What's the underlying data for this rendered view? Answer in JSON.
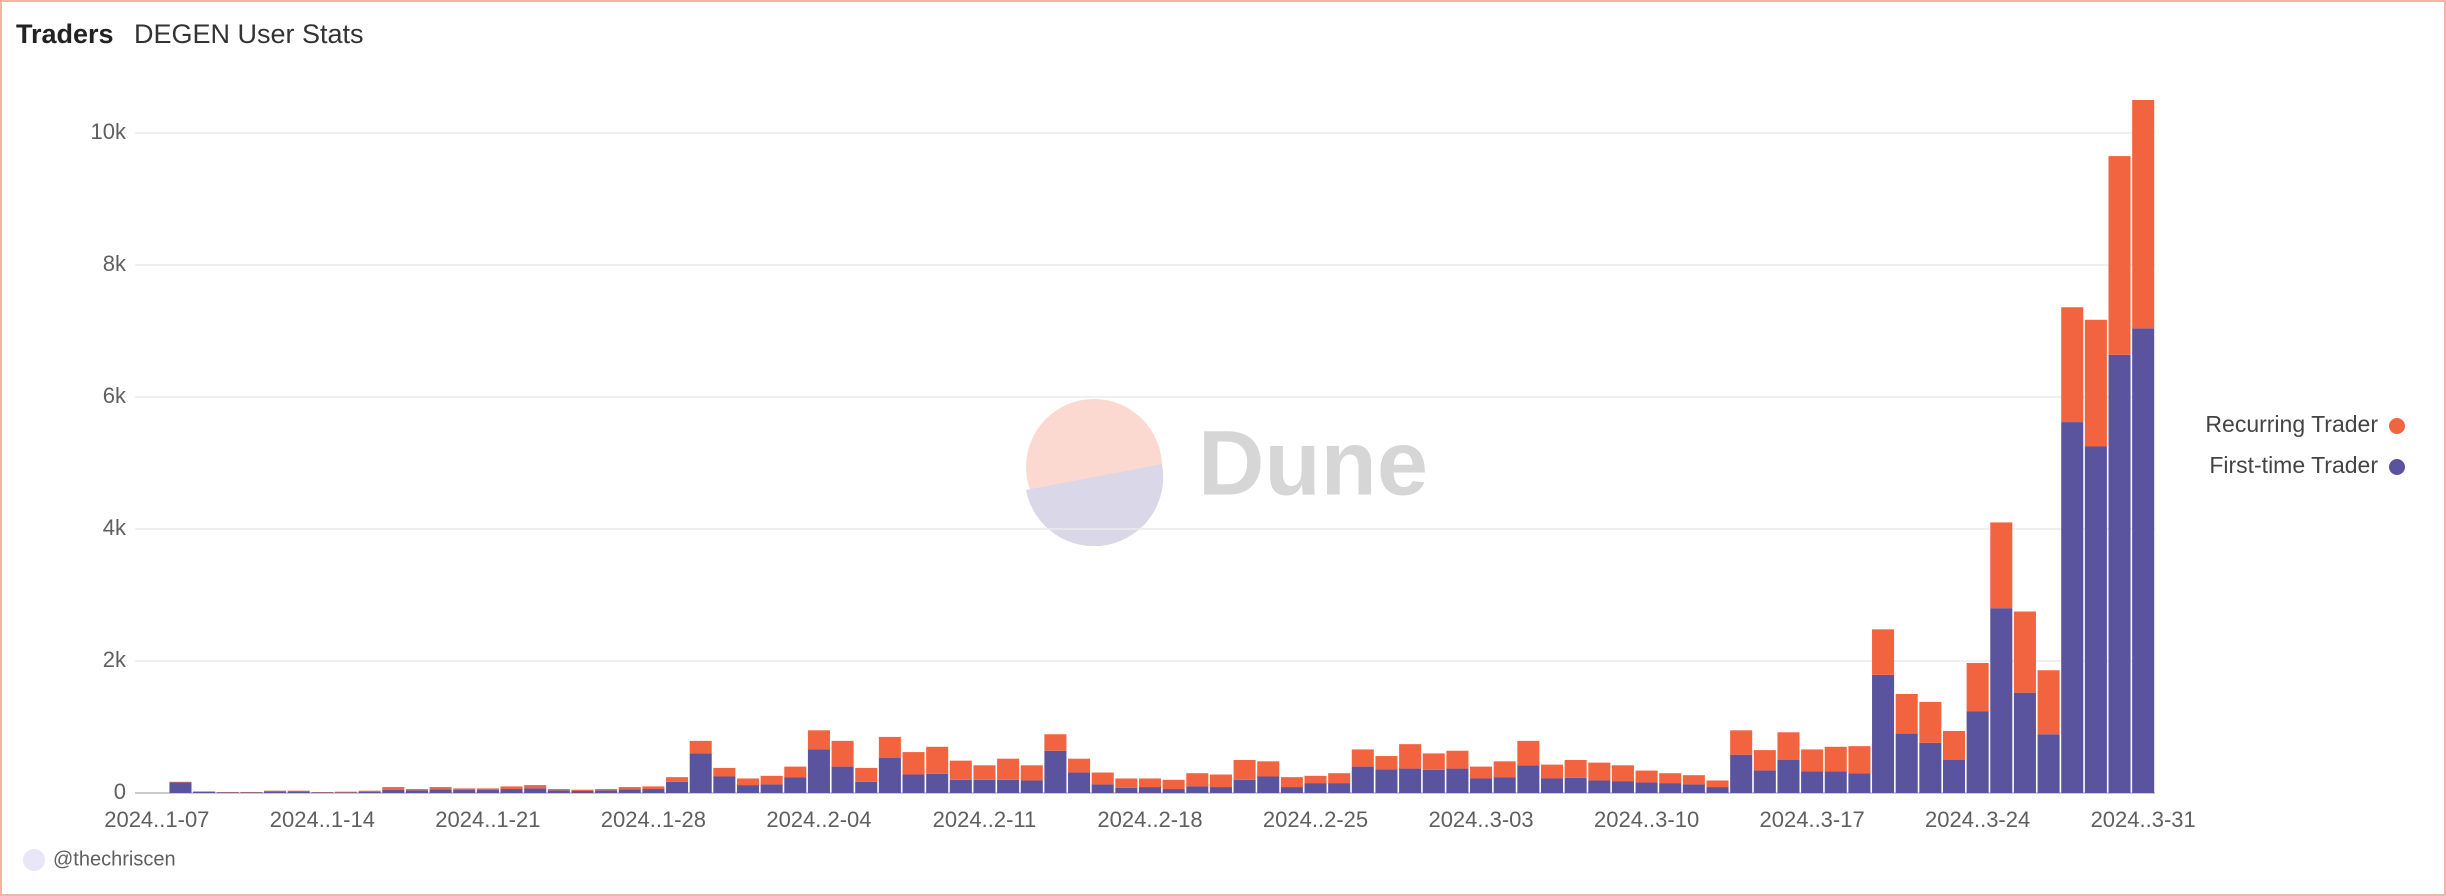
{
  "chart_data": {
    "type": "stacked_bar",
    "title": "Traders",
    "subtitle": "DEGEN User Stats",
    "watermark": "Dune",
    "author": "@thechriscen",
    "categories": [
      "2024..1-07",
      null,
      null,
      null,
      null,
      null,
      null,
      "2024..1-14",
      null,
      null,
      null,
      null,
      null,
      null,
      "2024..1-21",
      null,
      null,
      null,
      null,
      null,
      null,
      "2024..1-28",
      null,
      null,
      null,
      null,
      null,
      null,
      "2024..2-04",
      null,
      null,
      null,
      null,
      null,
      null,
      "2024..2-11",
      null,
      null,
      null,
      null,
      null,
      null,
      "2024..2-18",
      null,
      null,
      null,
      null,
      null,
      null,
      "2024..2-25",
      null,
      null,
      null,
      null,
      null,
      null,
      "2024..3-03",
      null,
      null,
      null,
      null,
      null,
      null,
      "2024..3-10",
      null,
      null,
      null,
      null,
      null,
      null,
      "2024..3-17",
      null,
      null,
      null,
      null,
      null,
      null,
      "2024..3-24",
      null,
      null,
      null,
      null,
      null,
      null,
      "2024..3-31"
    ],
    "series": [
      {
        "name": "Recurring Trader",
        "color": "#f2643f",
        "values": [
          0,
          10,
          5,
          5,
          5,
          10,
          10,
          5,
          10,
          15,
          40,
          20,
          35,
          25,
          25,
          40,
          50,
          20,
          20,
          20,
          35,
          40,
          70,
          190,
          130,
          100,
          130,
          160,
          290,
          390,
          210,
          320,
          340,
          410,
          290,
          220,
          320,
          230,
          250,
          210,
          180,
          140,
          130,
          140,
          200,
          190,
          300,
          230,
          150,
          110,
          150,
          260,
          200,
          370,
          250,
          270,
          180,
          240,
          370,
          210,
          270,
          270,
          240,
          180,
          150,
          140,
          100,
          370,
          310,
          420,
          330,
          370,
          410,
          690,
          600,
          620,
          440,
          730,
          1300,
          1230,
          970,
          1740,
          1920,
          3010,
          3460
        ]
      },
      {
        "name": "First-time Trader",
        "color": "#5a539e",
        "values": [
          0,
          160,
          20,
          10,
          10,
          25,
          25,
          10,
          10,
          20,
          50,
          40,
          55,
          45,
          45,
          60,
          70,
          40,
          30,
          40,
          55,
          60,
          170,
          600,
          250,
          120,
          130,
          240,
          660,
          400,
          170,
          530,
          280,
          290,
          200,
          200,
          200,
          190,
          640,
          310,
          130,
          80,
          90,
          60,
          100,
          90,
          200,
          250,
          90,
          150,
          150,
          400,
          360,
          370,
          350,
          370,
          220,
          240,
          420,
          220,
          230,
          190,
          180,
          160,
          150,
          130,
          90,
          580,
          340,
          500,
          330,
          330,
          300,
          1790,
          900,
          760,
          500,
          1240,
          2800,
          1520,
          890,
          5620,
          5250,
          6640,
          7040
        ]
      }
    ],
    "ylim": [
      0,
      11000
    ],
    "yticks": [
      0,
      {
        "value": 2000,
        "label": "2k"
      },
      {
        "value": 4000,
        "label": "4k"
      },
      {
        "value": 6000,
        "label": "6k"
      },
      {
        "value": 8000,
        "label": "8k"
      },
      {
        "value": 10000,
        "label": "10k"
      }
    ],
    "grid": true,
    "legend": "right"
  }
}
